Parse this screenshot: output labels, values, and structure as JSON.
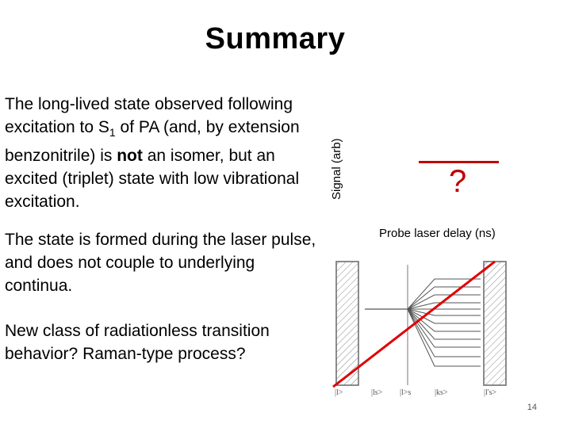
{
  "slide": {
    "title": "Summary",
    "para1": {
      "before_sub": "The long-lived state observed following excitation to S",
      "sub": "1",
      "after_sub": " of PA (and, by extension benzonitrile) is ",
      "bold": "not",
      "rest": " an isomer, but an excited (triplet) state with low vibrational excitation."
    },
    "para2": "The state is formed during the laser pulse, and does not couple to underlying continua.",
    "para3": "New class of radiationless transition behavior? Raman-type process?",
    "page_number": "14"
  },
  "plot": {
    "ylabel": "Signal (arb)",
    "placeholder": "?",
    "xlabel": "Probe laser delay (ns)",
    "accent_color": "#c00000"
  },
  "diagram": {
    "labels": [
      "|l>",
      "|ls>",
      "|l>s",
      "|ks>",
      "|l's>"
    ],
    "strike_color": "#e00000"
  }
}
